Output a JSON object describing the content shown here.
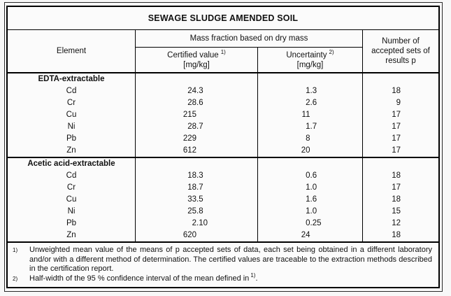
{
  "title": "SEWAGE SLUDGE AMENDED SOIL",
  "header": {
    "element": "Element",
    "mass_fraction": "Mass fraction based on dry mass",
    "certified": {
      "label": "Certified value",
      "sup": "1)",
      "unit": "[mg/kg]"
    },
    "uncertainty": {
      "label": "Uncertainty",
      "sup": "2)",
      "unit": "[mg/kg]"
    },
    "accepted_lines": [
      "Number of",
      "accepted sets of",
      "results p"
    ]
  },
  "sections": [
    {
      "name": "EDTA-extractable",
      "rows": [
        {
          "element": "Cd",
          "certified": "24.3",
          "uncertainty": "1.3",
          "p": "18"
        },
        {
          "element": "Cr",
          "certified": "28.6",
          "uncertainty": "2.6",
          "p": "9"
        },
        {
          "element": "Cu",
          "certified": "215",
          "uncertainty": "11",
          "p": "17"
        },
        {
          "element": "Ni",
          "certified": "28.7",
          "uncertainty": "1.7",
          "p": "17"
        },
        {
          "element": "Pb",
          "certified": "229",
          "uncertainty": "8",
          "p": "17"
        },
        {
          "element": "Zn",
          "certified": "612",
          "uncertainty": "20",
          "p": "17"
        }
      ]
    },
    {
      "name": "Acetic acid-extractable",
      "rows": [
        {
          "element": "Cd",
          "certified": "18.3",
          "uncertainty": "0.6",
          "p": "18"
        },
        {
          "element": "Cr",
          "certified": "18.7",
          "uncertainty": "1.0",
          "p": "17"
        },
        {
          "element": "Cu",
          "certified": "33.5",
          "uncertainty": "1.6",
          "p": "18"
        },
        {
          "element": "Ni",
          "certified": "25.8",
          "uncertainty": "1.0",
          "p": "15"
        },
        {
          "element": "Pb",
          "certified": "2.10",
          "uncertainty": "0.25",
          "p": "12"
        },
        {
          "element": "Zn",
          "certified": "620",
          "uncertainty": "24",
          "p": "18"
        }
      ]
    }
  ],
  "footnotes": [
    {
      "marker": "1)",
      "text": "Unweighted mean value of the means of p accepted sets of data, each set being obtained in a different laboratory and/or with a different method of determination. The certified values are traceable to the extraction methods described in the certification report."
    },
    {
      "marker": "2)",
      "text": "Half-width of the 95 % confidence interval of the mean defined in",
      "sup": "1)",
      "tail": "."
    }
  ]
}
